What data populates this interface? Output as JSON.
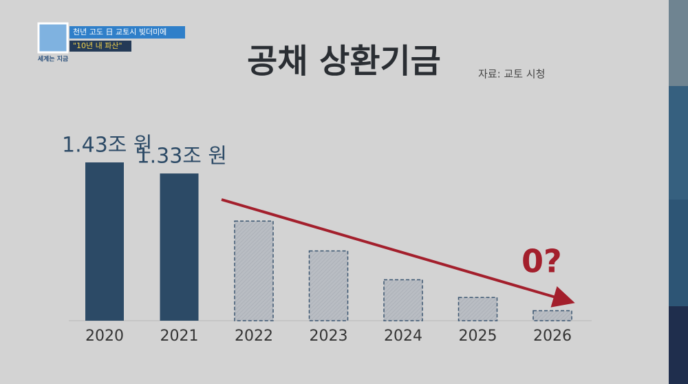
{
  "chart_data": {
    "type": "bar",
    "title": "공채 상환기금",
    "source": "자료: 교토 시청",
    "annotation": "0?",
    "caption": [
      "천년 고도 日 교토시 빚더미에",
      "\"10년 내 파산\""
    ],
    "program": "세계는 지금",
    "categories": [
      "2020",
      "2021",
      "2022",
      "2023",
      "2024",
      "2025",
      "2026"
    ],
    "values": [
      1.43,
      1.33,
      0.9,
      0.63,
      0.37,
      0.21,
      0.09
    ],
    "value_labels": [
      "1.43조 원",
      "1.33조 원",
      null,
      null,
      null,
      null,
      null
    ],
    "bar_styles": [
      "solid",
      "solid",
      "dashed",
      "dashed",
      "dashed",
      "dashed",
      "dashed"
    ],
    "color": "#2c4a66",
    "estimate_color": "#b9bdc3",
    "arrow_color": "#a31f2c"
  }
}
